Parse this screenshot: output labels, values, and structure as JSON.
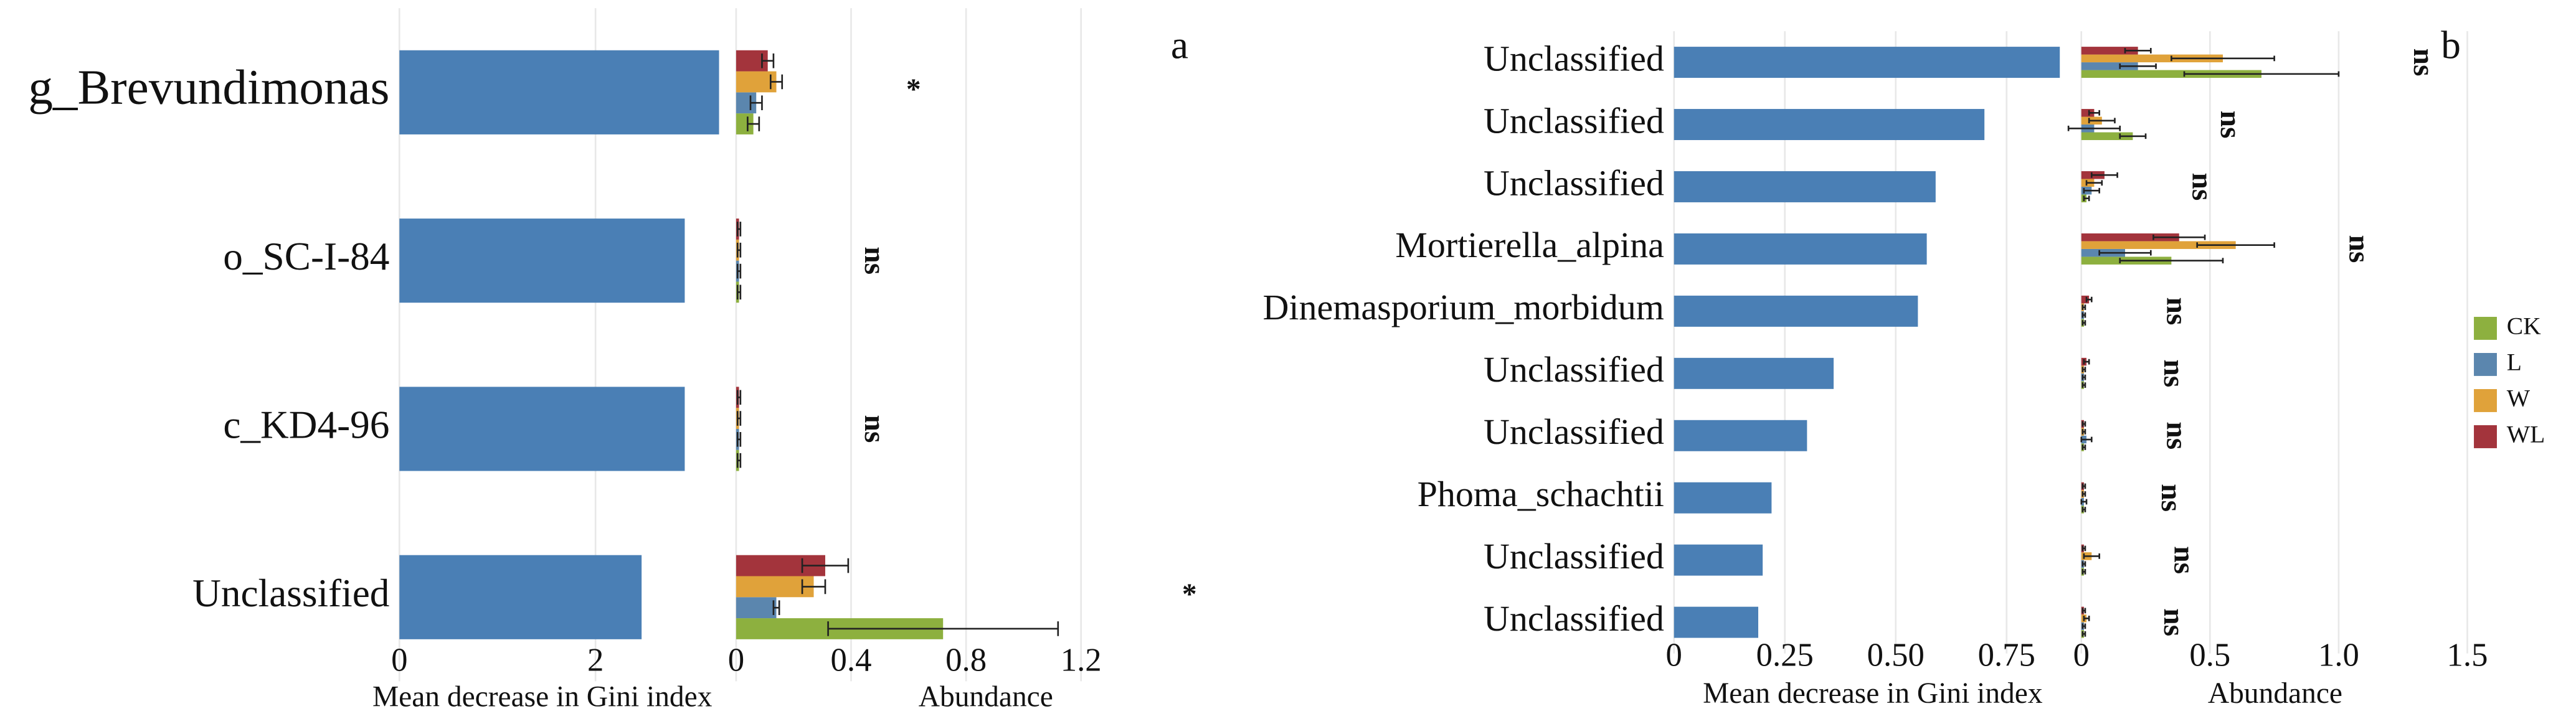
{
  "chart_data": [
    {
      "type": "bar",
      "orientation": "horizontal",
      "x_label": "Mean decrease in Gini index",
      "categories": [
        "g_Brevundimonas",
        "o_SC-I-84",
        "c_KD4-96",
        "Unclassified"
      ],
      "values": [
        3.26,
        2.91,
        2.91,
        2.47
      ],
      "color": "#4a7fb5",
      "xlim": [
        0,
        3.3
      ],
      "xticks": [
        0,
        2
      ],
      "grid": true
    },
    {
      "type": "grouped_bar",
      "orientation": "horizontal",
      "panel_label": "a",
      "x_label": "Abundance",
      "series": [
        {
          "color": "#8db03f",
          "values": [
            0.06,
            0.01,
            0.01,
            0.72
          ],
          "errors": [
            0.02,
            0.005,
            0.005,
            0.4
          ]
        },
        {
          "color": "#5b86ae",
          "values": [
            0.07,
            0.01,
            0.01,
            0.14
          ],
          "errors": [
            0.02,
            0.005,
            0.005,
            0.01
          ]
        },
        {
          "color": "#e0a23a",
          "values": [
            0.14,
            0.01,
            0.01,
            0.27
          ],
          "errors": [
            0.02,
            0.005,
            0.005,
            0.04
          ]
        },
        {
          "color": "#a3343c",
          "values": [
            0.11,
            0.01,
            0.01,
            0.31
          ],
          "errors": [
            0.02,
            0.005,
            0.005,
            0.08
          ]
        }
      ],
      "significance": [
        "*",
        "ns",
        "ns",
        "*"
      ],
      "xlim": [
        0,
        1.6
      ],
      "xticks": [
        0,
        0.4,
        0.8,
        1.2
      ],
      "grid": true,
      "legend": false
    },
    {
      "type": "bar",
      "orientation": "horizontal",
      "x_label": "Mean decrease in Gini index",
      "categories": [
        "Unclassified",
        "Unclassified",
        "Unclassified",
        "Mortierella_alpina",
        "Dinemasporium_morbidum",
        "Unclassified",
        "Unclassified",
        "Phoma_schachtii",
        "Unclassified",
        "Unclassified"
      ],
      "values": [
        0.87,
        0.7,
        0.59,
        0.57,
        0.55,
        0.36,
        0.3,
        0.22,
        0.2,
        0.19
      ],
      "color": "#4a7fb5",
      "xlim": [
        0,
        0.9
      ],
      "xticks": [
        0,
        0.25,
        {
          "value": 0.5,
          "label": "0.50"
        },
        0.75
      ],
      "grid": true
    },
    {
      "type": "grouped_bar",
      "orientation": "horizontal",
      "panel_label": "b",
      "x_label": "Abundance",
      "series": [
        {
          "name": "CK",
          "color": "#8db03f",
          "values": [
            0.7,
            0.2,
            0.02,
            0.35,
            0.01,
            0.01,
            0.01,
            0.01,
            0.01,
            0.01
          ],
          "errors": [
            0.3,
            0.05,
            0.01,
            0.2,
            0.005,
            0.005,
            0.005,
            0.005,
            0.005,
            0.005
          ]
        },
        {
          "name": "L",
          "color": "#5b86ae",
          "values": [
            0.22,
            0.05,
            0.04,
            0.17,
            0.01,
            0.01,
            0.02,
            0.01,
            0.01,
            0.01
          ],
          "errors": [
            0.07,
            0.1,
            0.03,
            0.1,
            0.005,
            0.005,
            0.02,
            0.01,
            0.005,
            0.005
          ]
        },
        {
          "name": "W",
          "color": "#e0a23a",
          "values": [
            0.55,
            0.08,
            0.05,
            0.6,
            0.01,
            0.01,
            0.01,
            0.01,
            0.04,
            0.02
          ],
          "errors": [
            0.2,
            0.05,
            0.03,
            0.15,
            0.005,
            0.005,
            0.005,
            0.005,
            0.03,
            0.01
          ]
        },
        {
          "name": "WL",
          "color": "#a3343c",
          "values": [
            0.22,
            0.05,
            0.09,
            0.38,
            0.03,
            0.02,
            0.01,
            0.01,
            0.01,
            0.01
          ],
          "errors": [
            0.05,
            0.02,
            0.05,
            0.1,
            0.01,
            0.01,
            0.005,
            0.005,
            0.005,
            0.005
          ]
        }
      ],
      "significance": [
        "ns",
        "ns",
        "ns",
        "ns",
        "ns",
        "ns",
        "ns",
        "ns",
        "ns",
        "ns"
      ],
      "xlim": [
        0,
        1.5
      ],
      "xticks": [
        0,
        0.5,
        {
          "value": 1,
          "label": "1.0"
        },
        1.5
      ],
      "grid": true,
      "legend": true
    }
  ]
}
